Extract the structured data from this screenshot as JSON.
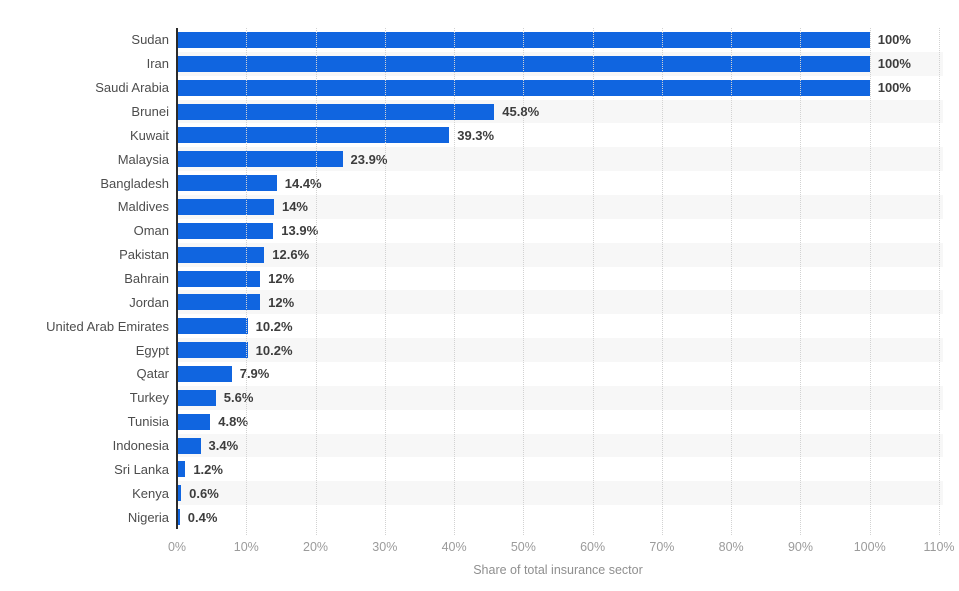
{
  "chart_data": {
    "type": "bar",
    "orientation": "horizontal",
    "title": "",
    "xlabel": "Share of total insurance sector",
    "ylabel": "",
    "categories": [
      "Sudan",
      "Iran",
      "Saudi Arabia",
      "Brunei",
      "Kuwait",
      "Malaysia",
      "Bangladesh",
      "Maldives",
      "Oman",
      "Pakistan",
      "Bahrain",
      "Jordan",
      "United Arab Emirates",
      "Egypt",
      "Qatar",
      "Turkey",
      "Tunisia",
      "Indonesia",
      "Sri Lanka",
      "Kenya",
      "Nigeria"
    ],
    "values": [
      100,
      100,
      100,
      45.8,
      39.3,
      23.9,
      14.4,
      14,
      13.9,
      12.6,
      12,
      12,
      10.2,
      10.2,
      7.9,
      5.6,
      4.8,
      3.4,
      1.2,
      0.6,
      0.4
    ],
    "value_labels": [
      "100%",
      "100%",
      "100%",
      "45.8%",
      "39.3%",
      "23.9%",
      "14.4%",
      "14%",
      "13.9%",
      "12.6%",
      "12%",
      "12%",
      "10.2%",
      "10.2%",
      "7.9%",
      "5.6%",
      "4.8%",
      "3.4%",
      "1.2%",
      "0.6%",
      "0.4%"
    ],
    "x_ticks": [
      "0%",
      "10%",
      "20%",
      "30%",
      "40%",
      "50%",
      "60%",
      "70%",
      "80%",
      "90%",
      "100%",
      "110%"
    ],
    "xlim": [
      0,
      110
    ],
    "grid": "vertical-dotted",
    "legend": "none",
    "colors": {
      "bar": "#1065e0",
      "row_stripe": "#f7f7f7",
      "gridline": "#d2d2d2",
      "axis_line": "#2b2b2b",
      "category_label": "#4d4d4d",
      "value_label": "#3d3d3d",
      "tick_label": "#9b9b9b",
      "axis_title": "#8f8f8f"
    }
  }
}
